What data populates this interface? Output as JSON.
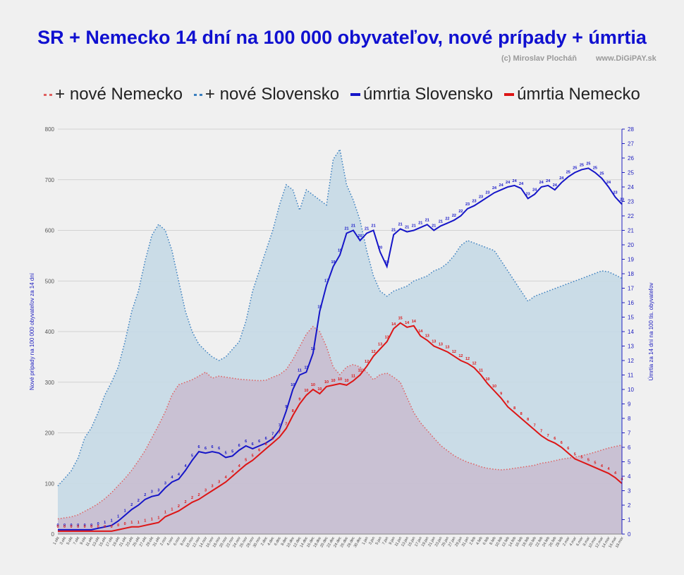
{
  "header": {
    "title": "SR + Nemecko 14 dní na 100 000 obyvateľov,  nové prípady + úmrtia",
    "author": "(c) Miroslav Plocháň",
    "site": "www.DiGiPAY.sk"
  },
  "chart_data": {
    "type": "area",
    "legend_position": "top",
    "grid": true,
    "y_left_label": "Nové prípady na 100 000 obyvateľov za 14 dní",
    "y_right_label": "Úmrtia za 14 dní na 100 tis. obyvateľov",
    "y_left_ticks": [
      "0",
      "100",
      "200",
      "300",
      "400",
      "500",
      "600",
      "700",
      "800"
    ],
    "y_right_ticks": [
      "0",
      "1",
      "2",
      "3",
      "4",
      "5",
      "6",
      "7",
      "8",
      "9",
      "10",
      "11",
      "12",
      "13",
      "14",
      "15",
      "16",
      "17",
      "18",
      "19",
      "20",
      "21",
      "22",
      "23",
      "24",
      "25",
      "26",
      "27",
      "28"
    ],
    "ylim_left": [
      0,
      800
    ],
    "ylim_right": [
      0,
      28
    ],
    "x_labels": [
      "1.okt",
      "3.okt",
      "5.okt",
      "7.okt",
      "9.okt",
      "11.okt",
      "13.okt",
      "15.okt",
      "17.okt",
      "19.okt",
      "21.okt",
      "23.okt",
      "25.okt",
      "27.okt",
      "29.okt",
      "31.okt",
      "2.nov",
      "4.nov",
      "6.nov",
      "8.nov",
      "10.nov",
      "12.nov",
      "14.nov",
      "16.nov",
      "18.nov",
      "20.nov",
      "22.nov",
      "24.nov",
      "26.nov",
      "28.nov",
      "30.nov",
      "2.dec",
      "4.dec",
      "6.dec",
      "8.dec",
      "10.dec",
      "12.dec",
      "14.dec",
      "16.dec",
      "18.dec",
      "20.dec",
      "22.dec",
      "24.dec",
      "26.dec",
      "28.dec",
      "30.dec",
      "1.jan",
      "3.jan",
      "5.jan",
      "7.jan",
      "9.jan",
      "11.jan",
      "13.jan",
      "15.jan",
      "17.jan",
      "19.jan",
      "21.jan",
      "23.jan",
      "25.jan",
      "27.jan",
      "29.jan",
      "31.jan",
      "2.feb",
      "4.feb",
      "6.feb",
      "8.feb",
      "10.feb",
      "12.feb",
      "14.feb",
      "16.feb",
      "18.feb",
      "20.feb",
      "22.feb",
      "24.feb",
      "26.feb",
      "28.feb",
      "2.mar",
      "4.mar",
      "6.mar",
      "8.mar",
      "10.mar",
      "12.mar",
      "14.mar",
      "16.mar",
      "18.mar"
    ],
    "series": [
      {
        "name": "+ nové Nemecko",
        "axis": "left",
        "style": "dotted-area",
        "color": "#e06060",
        "fill": "#c8b8cc",
        "values": [
          30,
          32,
          34,
          38,
          45,
          52,
          60,
          70,
          82,
          96,
          110,
          126,
          145,
          165,
          190,
          215,
          242,
          275,
          295,
          300,
          305,
          312,
          320,
          308,
          312,
          310,
          308,
          306,
          305,
          304,
          303,
          304,
          310,
          315,
          325,
          345,
          370,
          395,
          410,
          400,
          370,
          330,
          315,
          330,
          335,
          330,
          320,
          305,
          315,
          318,
          310,
          300,
          270,
          240,
          220,
          205,
          190,
          175,
          165,
          155,
          148,
          142,
          138,
          133,
          130,
          128,
          127,
          128,
          130,
          132,
          134,
          136,
          140,
          142,
          145,
          148,
          150,
          152,
          155,
          158,
          162,
          166,
          170,
          173,
          176
        ]
      },
      {
        "name": "+ nové Slovensko",
        "axis": "left",
        "style": "dotted-area",
        "color": "#3a7fbf",
        "fill": "#c5d9e6",
        "values": [
          95,
          110,
          125,
          150,
          190,
          210,
          240,
          275,
          300,
          330,
          380,
          440,
          480,
          540,
          590,
          612,
          600,
          560,
          500,
          440,
          400,
          375,
          362,
          350,
          343,
          350,
          365,
          380,
          420,
          480,
          520,
          560,
          600,
          650,
          690,
          680,
          640,
          680,
          670,
          660,
          650,
          740,
          760,
          690,
          660,
          620,
          560,
          510,
          480,
          470,
          480,
          485,
          490,
          500,
          505,
          510,
          520,
          525,
          535,
          550,
          570,
          580,
          575,
          570,
          565,
          560,
          540,
          520,
          500,
          480,
          460,
          470,
          475,
          480,
          485,
          490,
          495,
          500,
          505,
          510,
          515,
          520,
          518,
          512,
          505
        ]
      },
      {
        "name": "úmrtia Slovensko",
        "axis": "right",
        "style": "line",
        "color": "#1515c8",
        "values": [
          0.3,
          0.3,
          0.3,
          0.3,
          0.3,
          0.3,
          0.4,
          0.5,
          0.6,
          0.9,
          1.3,
          1.7,
          2.0,
          2.4,
          2.6,
          2.7,
          3.2,
          3.6,
          3.8,
          4.4,
          5.1,
          5.7,
          5.6,
          5.7,
          5.6,
          5.3,
          5.4,
          5.8,
          6.1,
          5.9,
          6.1,
          6.3,
          6.6,
          7.2,
          8.5,
          10.0,
          11.0,
          11.2,
          12.5,
          15.4,
          17.2,
          18.5,
          19.3,
          20.8,
          21.0,
          20.3,
          20.8,
          21.0,
          19.5,
          18.5,
          20.7,
          21.1,
          20.9,
          21.0,
          21.2,
          21.4,
          21.0,
          21.3,
          21.5,
          21.7,
          22.0,
          22.5,
          22.7,
          23.0,
          23.3,
          23.6,
          23.8,
          24.0,
          24.1,
          23.9,
          23.2,
          23.5,
          24.0,
          24.1,
          23.8,
          24.3,
          24.7,
          25.0,
          25.2,
          25.3,
          25.0,
          24.6,
          24.0,
          23.3,
          22.8
        ]
      },
      {
        "name": "úmrtia Nemecko",
        "axis": "right",
        "style": "line",
        "color": "#dd1515",
        "values": [
          0.2,
          0.2,
          0.2,
          0.2,
          0.2,
          0.2,
          0.2,
          0.2,
          0.2,
          0.3,
          0.4,
          0.5,
          0.5,
          0.6,
          0.7,
          0.8,
          1.2,
          1.4,
          1.6,
          1.9,
          2.2,
          2.4,
          2.7,
          3.0,
          3.3,
          3.6,
          4.0,
          4.4,
          4.8,
          5.1,
          5.5,
          5.9,
          6.3,
          6.7,
          7.3,
          8.2,
          9.0,
          9.6,
          10.0,
          9.7,
          10.2,
          10.3,
          10.4,
          10.3,
          10.6,
          11.0,
          11.6,
          12.3,
          12.8,
          13.3,
          14.2,
          14.6,
          14.3,
          14.4,
          13.7,
          13.4,
          13.0,
          12.8,
          12.6,
          12.3,
          12.0,
          11.8,
          11.5,
          11.0,
          10.4,
          9.9,
          9.4,
          8.8,
          8.4,
          8.0,
          7.6,
          7.2,
          6.8,
          6.5,
          6.3,
          6.0,
          5.6,
          5.2,
          5.0,
          4.8,
          4.6,
          4.4,
          4.2,
          3.9,
          3.5
        ]
      }
    ]
  }
}
